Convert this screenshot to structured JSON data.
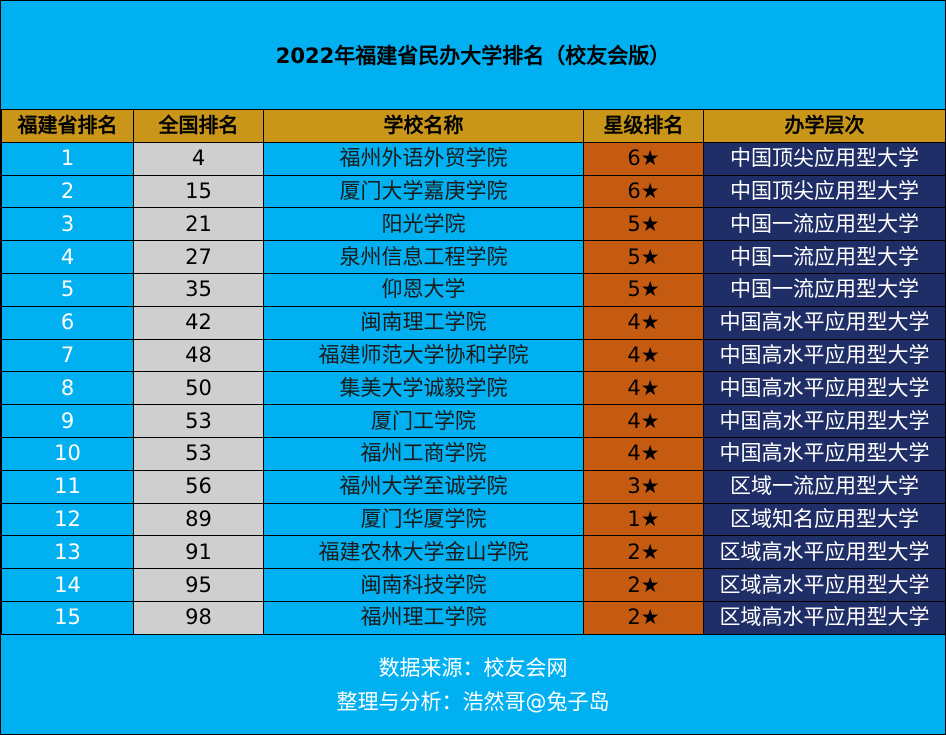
{
  "title": "2022年福建省民办大学排名（校友会版）",
  "columns": [
    "福建省排名",
    "全国排名",
    "学校名称",
    "星级排名",
    "办学层次"
  ],
  "rows": [
    {
      "prov": "1",
      "nat": "4",
      "name": "福州外语外贸学院",
      "star": "6★",
      "level": "中国顶尖应用型大学"
    },
    {
      "prov": "2",
      "nat": "15",
      "name": "厦门大学嘉庚学院",
      "star": "6★",
      "level": "中国顶尖应用型大学"
    },
    {
      "prov": "3",
      "nat": "21",
      "name": "阳光学院",
      "star": "5★",
      "level": "中国一流应用型大学"
    },
    {
      "prov": "4",
      "nat": "27",
      "name": "泉州信息工程学院",
      "star": "5★",
      "level": "中国一流应用型大学"
    },
    {
      "prov": "5",
      "nat": "35",
      "name": "仰恩大学",
      "star": "5★",
      "level": "中国一流应用型大学"
    },
    {
      "prov": "6",
      "nat": "42",
      "name": "闽南理工学院",
      "star": "4★",
      "level": "中国高水平应用型大学"
    },
    {
      "prov": "7",
      "nat": "48",
      "name": "福建师范大学协和学院",
      "star": "4★",
      "level": "中国高水平应用型大学"
    },
    {
      "prov": "8",
      "nat": "50",
      "name": "集美大学诚毅学院",
      "star": "4★",
      "level": "中国高水平应用型大学"
    },
    {
      "prov": "9",
      "nat": "53",
      "name": "厦门工学院",
      "star": "4★",
      "level": "中国高水平应用型大学"
    },
    {
      "prov": "10",
      "nat": "53",
      "name": "福州工商学院",
      "star": "4★",
      "level": "中国高水平应用型大学"
    },
    {
      "prov": "11",
      "nat": "56",
      "name": "福州大学至诚学院",
      "star": "3★",
      "level": "区域一流应用型大学"
    },
    {
      "prov": "12",
      "nat": "89",
      "name": "厦门华厦学院",
      "star": "1★",
      "level": "区域知名应用型大学"
    },
    {
      "prov": "13",
      "nat": "91",
      "name": "福建农林大学金山学院",
      "star": "2★",
      "level": "区域高水平应用型大学"
    },
    {
      "prov": "14",
      "nat": "95",
      "name": "闽南科技学院",
      "star": "2★",
      "level": "区域高水平应用型大学"
    },
    {
      "prov": "15",
      "nat": "98",
      "name": "福州理工学院",
      "star": "2★",
      "level": "区域高水平应用型大学"
    }
  ],
  "footer": {
    "source": "数据来源：校友会网",
    "author": "整理与分析：浩然哥@兔子岛"
  },
  "colors": {
    "background": "#00b0f0",
    "header": "#c9961a",
    "national_rank": "#cfcfcf",
    "star_rank": "#c55a11",
    "level": "#1f2e66"
  }
}
